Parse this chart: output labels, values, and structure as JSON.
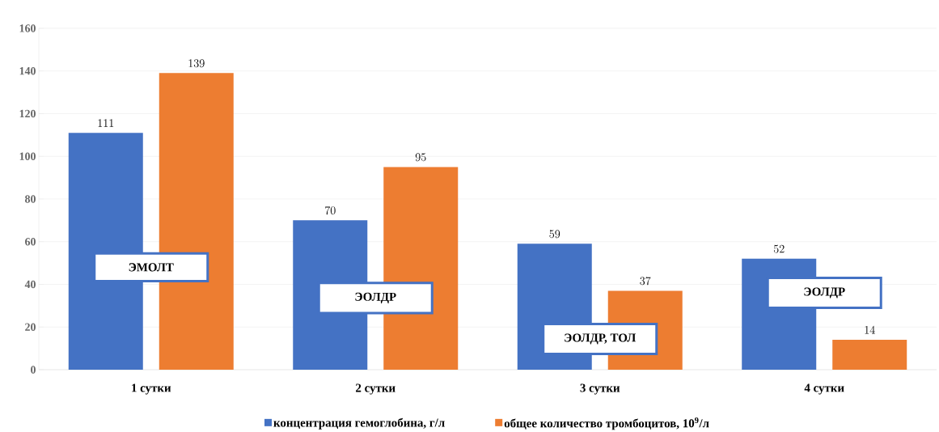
{
  "chart_data": {
    "type": "bar",
    "categories": [
      "1 сутки",
      "2 сутки",
      "3 сутки",
      "4 сутки"
    ],
    "series": [
      {
        "name": "концентрация гемоглобина, г/л",
        "color": "#4472c4",
        "values": [
          111,
          70,
          59,
          52
        ]
      },
      {
        "name": "общее количество тромбоцитов, 10$^{9}$/л",
        "color": "#ed7d31",
        "values": [
          139,
          95,
          37,
          14
        ]
      }
    ],
    "ylim": [
      0,
      160
    ],
    "yticks": [
      0,
      20,
      40,
      60,
      80,
      100,
      120,
      140,
      160
    ],
    "grid": "y",
    "legend": "bottom",
    "data_labels": true,
    "annotations": [
      "ЭМОЛТ",
      "ЭОЛДР",
      "ЭОЛДР, ТОЛ",
      "ЭОЛДР"
    ]
  }
}
